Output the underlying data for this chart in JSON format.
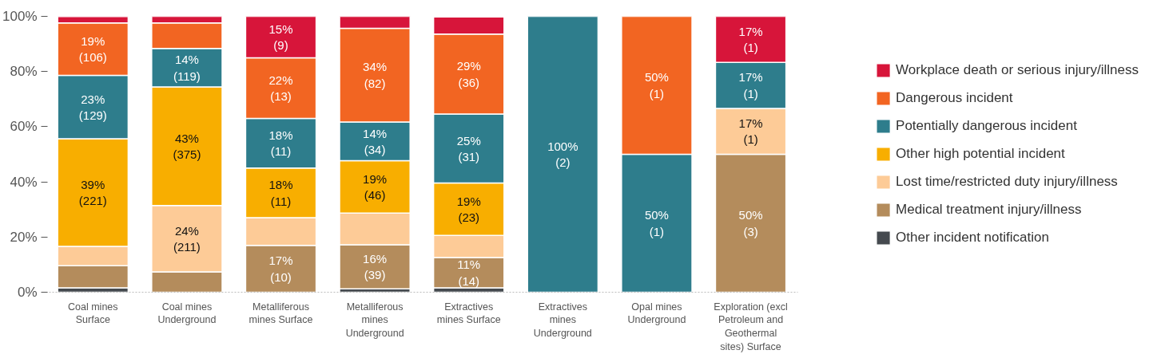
{
  "chart_data": {
    "type": "bar",
    "stacked": true,
    "categories": [
      "Coal mines\nSurface",
      "Coal mines\nUnderground",
      "Metalliferous\nmines Surface",
      "Metalliferous\nmines\nUnderground",
      "Extractives\nmines Surface",
      "Extractives\nmines\nUnderground",
      "Opal mines\nUnderground",
      "Exploration (excl\nPetroleum and\nGeothermal\nsites) Surface"
    ],
    "ylim": [
      0,
      100
    ],
    "yticks": [
      {
        "value": 0,
        "label": "0%"
      },
      {
        "value": 20,
        "label": "20%"
      },
      {
        "value": 40,
        "label": "40%"
      },
      {
        "value": 60,
        "label": "60%"
      },
      {
        "value": 80,
        "label": "80%"
      },
      {
        "value": 100,
        "label": "100%"
      }
    ],
    "legend": "right",
    "grid": false,
    "series": [
      {
        "name": "Other incident notification",
        "color": "#454a4f",
        "values": [
          1.6,
          0,
          0,
          1.2,
          1.6,
          0,
          0,
          0
        ],
        "value_labels": [
          null,
          null,
          null,
          null,
          null,
          null,
          null,
          null
        ]
      },
      {
        "name": "Medical treatment injury/illness",
        "color": "#b48c5c",
        "values": [
          8,
          7.4,
          17,
          16,
          11,
          0,
          0,
          50
        ],
        "value_labels": [
          null,
          null,
          "17%\n(10)",
          "16%\n(39)",
          "11%\n(14)",
          null,
          null,
          "50%\n(3)"
        ]
      },
      {
        "name": "Lost time/restricted duty injury/illness",
        "color": "#fdcb97",
        "values": [
          7,
          24,
          10,
          11.5,
          8,
          0,
          0,
          16.6
        ],
        "value_labels": [
          null,
          "24%\n(211)",
          null,
          null,
          null,
          null,
          null,
          "17%\n(1)"
        ]
      },
      {
        "name": "Other high potential incident",
        "color": "#f8ae00",
        "values": [
          39,
          43,
          18,
          19,
          19,
          0,
          0,
          0
        ],
        "value_labels": [
          "39%\n(221)",
          "43%\n(375)",
          "18%\n(11)",
          "19%\n(46)",
          "19%\n(23)",
          null,
          null,
          null
        ]
      },
      {
        "name": "Potentially dangerous incident",
        "color": "#2e7d8c",
        "values": [
          23,
          14,
          18,
          14,
          25,
          100,
          50,
          16.7
        ],
        "value_labels": [
          "23%\n(129)",
          "14%\n(119)",
          "18%\n(11)",
          "14%\n(34)",
          "25%\n(31)",
          "100%\n(2)",
          "50%\n(1)",
          "17%\n(1)"
        ]
      },
      {
        "name": "Dangerous incident",
        "color": "#f26522",
        "values": [
          19,
          9.2,
          22,
          34,
          29,
          0,
          50,
          0
        ],
        "value_labels": [
          "19%\n(106)",
          null,
          "22%\n(13)",
          "34%\n(82)",
          "29%\n(36)",
          null,
          "50%\n(1)",
          null
        ]
      },
      {
        "name": "Workplace death or serious injury/illness",
        "color": "#d7153a",
        "values": [
          2.3,
          2.4,
          15,
          4.3,
          6.2,
          0,
          0,
          16.7
        ],
        "value_labels": [
          null,
          null,
          "15%\n(9)",
          null,
          null,
          null,
          null,
          "17%\n(1)"
        ]
      }
    ]
  }
}
